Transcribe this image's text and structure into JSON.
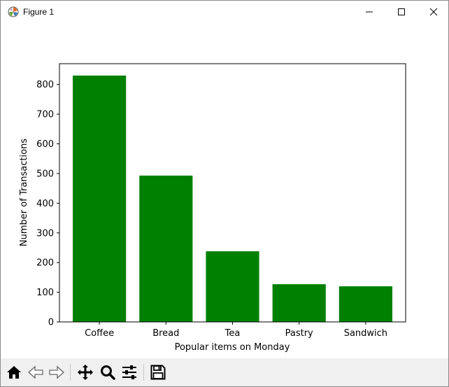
{
  "window": {
    "title": "Figure 1",
    "icons": {
      "app": "matplotlib-icon",
      "minimize": "minimize-icon",
      "maximize": "maximize-icon",
      "close": "close-icon"
    }
  },
  "toolbar": {
    "buttons": [
      {
        "name": "home-icon"
      },
      {
        "name": "back-arrow-icon"
      },
      {
        "name": "forward-arrow-icon"
      },
      {
        "name": "pan-icon"
      },
      {
        "name": "zoom-icon"
      },
      {
        "name": "configure-subplots-icon"
      },
      {
        "name": "save-icon"
      }
    ]
  },
  "chart_data": {
    "type": "bar",
    "categories": [
      "Coffee",
      "Bread",
      "Tea",
      "Pastry",
      "Sandwich"
    ],
    "values": [
      830,
      493,
      238,
      127,
      120
    ],
    "title": "",
    "xlabel": "Popular items on Monday",
    "ylabel": "Number of Transactions",
    "ylim": [
      0,
      870
    ],
    "yticks": [
      0,
      100,
      200,
      300,
      400,
      500,
      600,
      700,
      800
    ],
    "bar_color": "#008000",
    "grid": false,
    "legend": "none"
  }
}
